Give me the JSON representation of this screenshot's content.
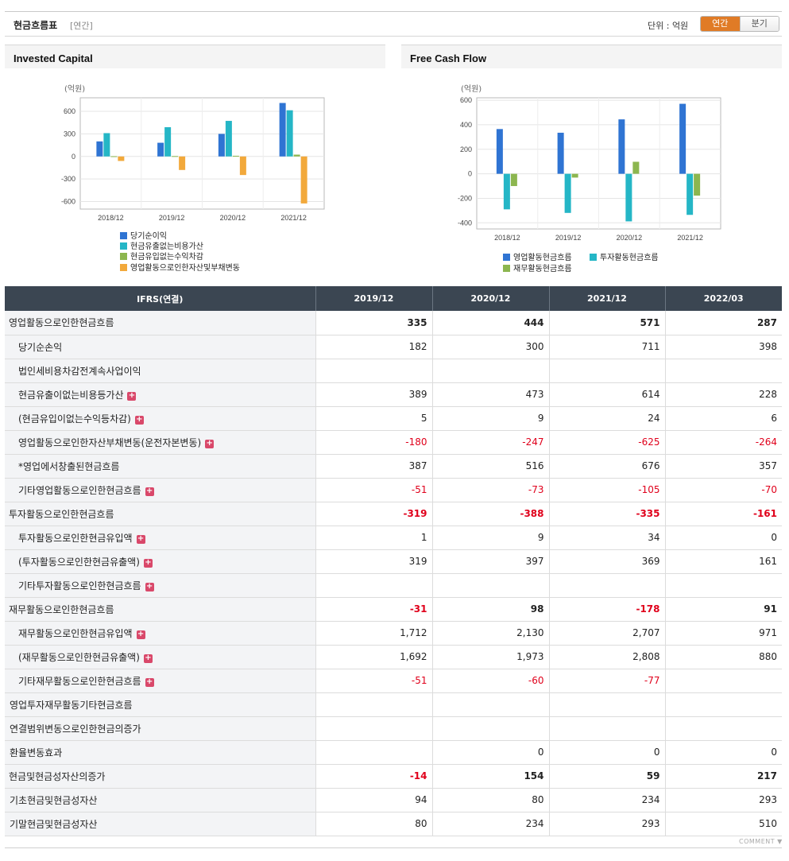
{
  "header": {
    "title": "현금흐름표",
    "sub": "[연간]",
    "unit": "단위 : 억원",
    "toggle": [
      "연간",
      "분기"
    ]
  },
  "chart_data": [
    {
      "type": "bar",
      "title": "Invested Capital",
      "ylabel": "(억원)",
      "categories": [
        "2018/12",
        "2019/12",
        "2020/12",
        "2021/12"
      ],
      "yticks": [
        600,
        300,
        0,
        -300,
        -600
      ],
      "ylim": [
        -700,
        780
      ],
      "series": [
        {
          "name": "당기순이익",
          "color": "#2f74d3",
          "values": [
            200,
            182,
            300,
            711
          ]
        },
        {
          "name": "현금유출없는비용가산",
          "color": "#25b6c6",
          "values": [
            310,
            389,
            473,
            614
          ]
        },
        {
          "name": "현금유입없는수익차감",
          "color": "#8cb64f",
          "values": [
            3,
            5,
            9,
            24
          ]
        },
        {
          "name": "영업활동으로인한자산및부채변동",
          "color": "#f2a93b",
          "values": [
            -60,
            -180,
            -247,
            -625
          ]
        }
      ],
      "grid": true,
      "legend": "bottom"
    },
    {
      "type": "bar",
      "title": "Free Cash Flow",
      "ylabel": "(억원)",
      "categories": [
        "2018/12",
        "2019/12",
        "2020/12",
        "2021/12"
      ],
      "yticks": [
        600,
        400,
        200,
        0,
        -200,
        -400
      ],
      "ylim": [
        -450,
        620
      ],
      "series": [
        {
          "name": "영업활동현금흐름",
          "color": "#2f74d3",
          "values": [
            365,
            335,
            444,
            571
          ]
        },
        {
          "name": "투자활동현금흐름",
          "color": "#25b6c6",
          "values": [
            -290,
            -319,
            -388,
            -335
          ]
        },
        {
          "name": "재무활동현금흐름",
          "color": "#8cb64f",
          "values": [
            -100,
            -31,
            98,
            -178
          ]
        }
      ],
      "grid": true,
      "legend": "bottom"
    }
  ],
  "table": {
    "header": [
      "IFRS(연결)",
      "2019/12",
      "2020/12",
      "2021/12",
      "2022/03"
    ],
    "rows": [
      {
        "label": "영업활동으로인한현금흐름",
        "level": "main",
        "expand": false,
        "values": [
          "335",
          "444",
          "571",
          "287"
        ]
      },
      {
        "label": "당기순손익",
        "level": "sub",
        "expand": false,
        "values": [
          "182",
          "300",
          "711",
          "398"
        ]
      },
      {
        "label": "법인세비용차감전계속사업이익",
        "level": "sub",
        "expand": false,
        "values": [
          "",
          "",
          "",
          ""
        ]
      },
      {
        "label": "현금유출이없는비용등가산",
        "level": "sub",
        "expand": true,
        "values": [
          "389",
          "473",
          "614",
          "228"
        ]
      },
      {
        "label": "(현금유입이없는수익등차감)",
        "level": "sub",
        "expand": true,
        "values": [
          "5",
          "9",
          "24",
          "6"
        ]
      },
      {
        "label": "영업활동으로인한자산부채변동(운전자본변동)",
        "level": "sub",
        "expand": true,
        "values": [
          "-180",
          "-247",
          "-625",
          "-264"
        ]
      },
      {
        "label": "*영업에서창출된현금흐름",
        "level": "sub",
        "expand": false,
        "values": [
          "387",
          "516",
          "676",
          "357"
        ]
      },
      {
        "label": "기타영업활동으로인한현금흐름",
        "level": "sub",
        "expand": true,
        "values": [
          "-51",
          "-73",
          "-105",
          "-70"
        ]
      },
      {
        "label": "투자활동으로인한현금흐름",
        "level": "main",
        "expand": false,
        "values": [
          "-319",
          "-388",
          "-335",
          "-161"
        ]
      },
      {
        "label": "투자활동으로인한현금유입액",
        "level": "sub",
        "expand": true,
        "values": [
          "1",
          "9",
          "34",
          "0"
        ]
      },
      {
        "label": "(투자활동으로인한현금유출액)",
        "level": "sub",
        "expand": true,
        "values": [
          "319",
          "397",
          "369",
          "161"
        ]
      },
      {
        "label": "기타투자활동으로인한현금흐름",
        "level": "sub",
        "expand": true,
        "values": [
          "",
          "",
          "",
          ""
        ]
      },
      {
        "label": "재무활동으로인한현금흐름",
        "level": "main",
        "expand": false,
        "values": [
          "-31",
          "98",
          "-178",
          "91"
        ]
      },
      {
        "label": "재무활동으로인한현금유입액",
        "level": "sub",
        "expand": true,
        "values": [
          "1,712",
          "2,130",
          "2,707",
          "971"
        ]
      },
      {
        "label": "(재무활동으로인한현금유출액)",
        "level": "sub",
        "expand": true,
        "values": [
          "1,692",
          "1,973",
          "2,808",
          "880"
        ]
      },
      {
        "label": "기타재무활동으로인한현금흐름",
        "level": "sub",
        "expand": true,
        "values": [
          "-51",
          "-60",
          "-77",
          ""
        ]
      },
      {
        "label": "영업투자재무활동기타현금흐름",
        "level": "plain",
        "expand": false,
        "values": [
          "",
          "",
          "",
          ""
        ]
      },
      {
        "label": "연결범위변동으로인한현금의증가",
        "level": "plain",
        "expand": false,
        "values": [
          "",
          "",
          "",
          ""
        ]
      },
      {
        "label": "환율변동효과",
        "level": "plain",
        "expand": false,
        "values": [
          "",
          "0",
          "0",
          "0"
        ]
      },
      {
        "label": "현금및현금성자산의증가",
        "level": "main",
        "expand": false,
        "values": [
          "-14",
          "154",
          "59",
          "217"
        ]
      },
      {
        "label": "기초현금및현금성자산",
        "level": "plain",
        "expand": false,
        "values": [
          "94",
          "80",
          "234",
          "293"
        ]
      },
      {
        "label": "기말현금및현금성자산",
        "level": "plain",
        "expand": false,
        "values": [
          "80",
          "234",
          "293",
          "510"
        ]
      }
    ]
  },
  "footer": {
    "comment": "COMMENT ▼"
  }
}
